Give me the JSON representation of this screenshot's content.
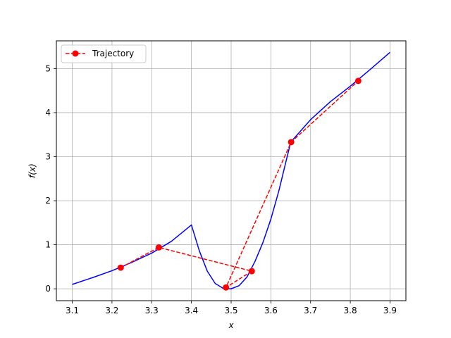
{
  "chart_data": {
    "type": "line",
    "title": "",
    "xlabel": "x",
    "ylabel": "f(x)",
    "xlim": [
      3.06,
      3.94
    ],
    "ylim": [
      -0.27,
      5.63
    ],
    "xticks": [
      3.1,
      3.2,
      3.3,
      3.4,
      3.5,
      3.6,
      3.7,
      3.8,
      3.9
    ],
    "xtick_labels": [
      "3.1",
      "3.2",
      "3.3",
      "3.4",
      "3.5",
      "3.6",
      "3.7",
      "3.8",
      "3.9"
    ],
    "yticks": [
      0,
      1,
      2,
      3,
      4,
      5
    ],
    "ytick_labels": [
      "0",
      "1",
      "2",
      "3",
      "4",
      "5"
    ],
    "grid": true,
    "legend_position": "upper-left",
    "series": [
      {
        "name": "",
        "style": "solid",
        "color": "#0000ff",
        "x": [
          3.1,
          3.15,
          3.2,
          3.25,
          3.3,
          3.35,
          3.4,
          3.42,
          3.44,
          3.46,
          3.48,
          3.5,
          3.52,
          3.54,
          3.56,
          3.58,
          3.6,
          3.62,
          3.65,
          3.7,
          3.75,
          3.8,
          3.85,
          3.9
        ],
        "y": [
          0.1,
          0.25,
          0.41,
          0.6,
          0.81,
          1.08,
          1.45,
          0.86,
          0.4,
          0.12,
          0.01,
          0.0,
          0.07,
          0.27,
          0.62,
          1.05,
          1.58,
          2.22,
          3.33,
          3.84,
          4.25,
          4.6,
          4.98,
          5.37
        ]
      },
      {
        "name": "Trajectory",
        "style": "dashed",
        "marker": "circle",
        "color": "#ff0000",
        "x": [
          3.222,
          3.318,
          3.552,
          3.487,
          3.651,
          3.82
        ],
        "y": [
          0.48,
          0.94,
          0.4,
          0.03,
          3.33,
          4.72
        ]
      }
    ]
  },
  "legend": {
    "label": "Trajectory"
  }
}
